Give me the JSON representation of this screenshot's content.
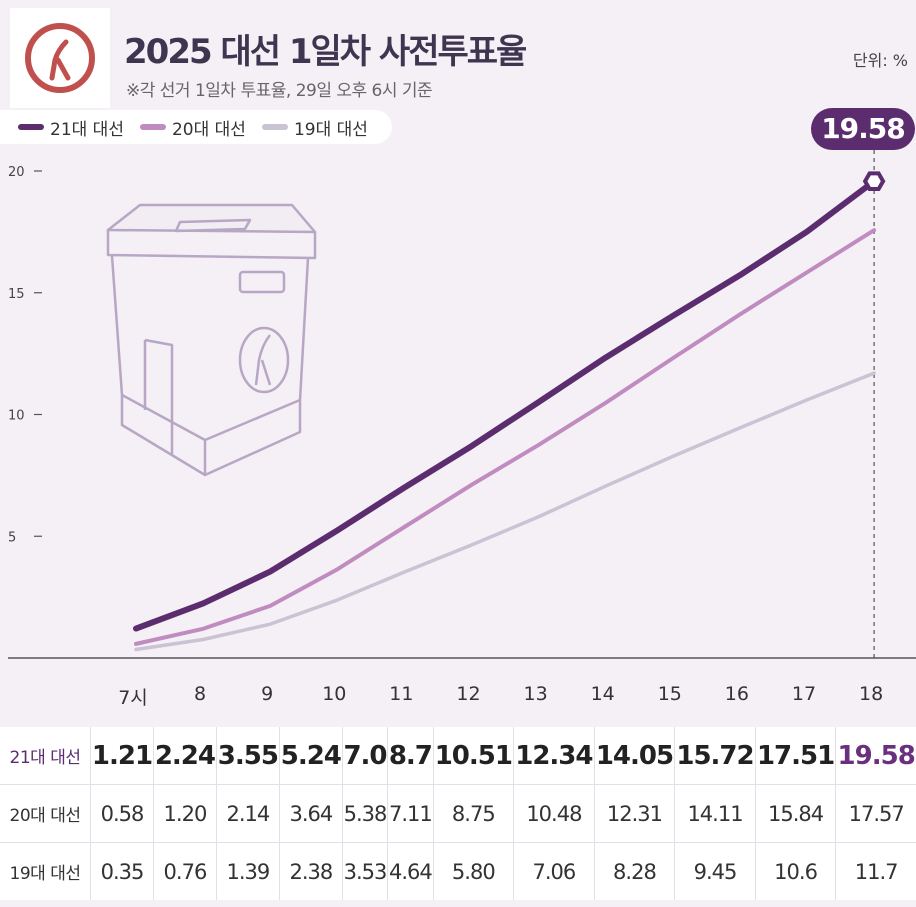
{
  "header": {
    "title": "2025 대선 1일차 사전투표율",
    "subtitle": "※각 선거 1일차 투표율, 29일 오후 6시 기준",
    "unit": "단위: %",
    "callout": "19.58"
  },
  "colors": {
    "s21": "#5c2d6e",
    "s20": "#c08cbf",
    "s19": "#c9c3d4",
    "accent": "#6b2f80"
  },
  "icons": [
    "ballot-logo-icon",
    "ballot-box-icon",
    "hexagon-marker-icon"
  ],
  "chart_data": {
    "type": "line",
    "x": [
      "7시",
      "8",
      "9",
      "10",
      "11",
      "12",
      "13",
      "14",
      "15",
      "16",
      "17",
      "18"
    ],
    "yticks": [
      "5",
      "10",
      "15",
      "20"
    ],
    "ylim": [
      0,
      20
    ],
    "series": [
      {
        "name": "21대 대선",
        "values": [
          1.21,
          2.24,
          3.55,
          5.24,
          7.0,
          8.7,
          10.51,
          12.34,
          14.05,
          15.72,
          17.51,
          19.58
        ]
      },
      {
        "name": "20대 대선",
        "values": [
          0.58,
          1.2,
          2.14,
          3.64,
          5.38,
          7.11,
          8.75,
          10.48,
          12.31,
          14.11,
          15.84,
          17.57
        ]
      },
      {
        "name": "19대 대선",
        "values": [
          0.35,
          0.76,
          1.39,
          2.38,
          3.53,
          4.64,
          5.8,
          7.06,
          8.28,
          9.45,
          10.6,
          11.7
        ]
      }
    ]
  },
  "table": {
    "rows": [
      {
        "label": "21대 대선",
        "values": [
          "1.21",
          "2.24",
          "3.55",
          "5.24",
          "7.0",
          "8.7",
          "10.51",
          "12.34",
          "14.05",
          "15.72",
          "17.51",
          "19.58"
        ]
      },
      {
        "label": "20대 대선",
        "values": [
          "0.58",
          "1.20",
          "2.14",
          "3.64",
          "5.38",
          "7.11",
          "8.75",
          "10.48",
          "12.31",
          "14.11",
          "15.84",
          "17.57"
        ]
      },
      {
        "label": "19대 대선",
        "values": [
          "0.35",
          "0.76",
          "1.39",
          "2.38",
          "3.53",
          "4.64",
          "5.80",
          "7.06",
          "8.28",
          "9.45",
          "10.6",
          "11.7"
        ]
      }
    ]
  }
}
